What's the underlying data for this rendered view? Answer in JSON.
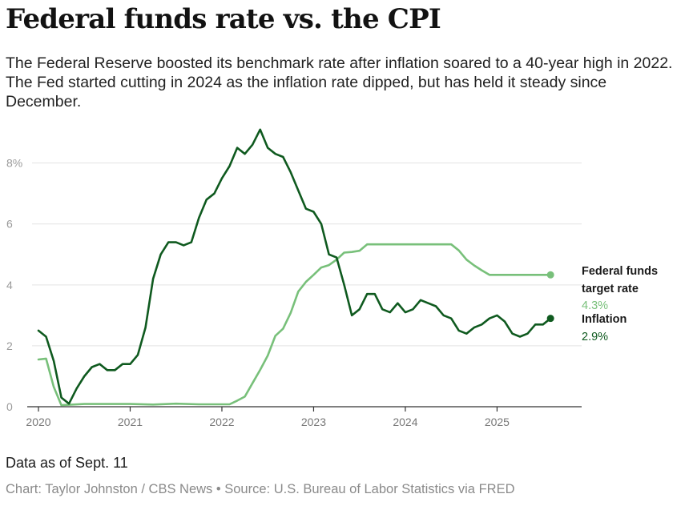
{
  "header": {
    "title": "Federal funds rate vs. the CPI",
    "subtitle": "The Federal Reserve boosted its benchmark rate after inflation soared to a 40-year high in 2022. The Fed started cutting in 2024 as the inflation rate dipped, but has held it steady since December."
  },
  "footer": {
    "note": "Data as of Sept. 11",
    "credit": "Chart: Taylor Johnston / CBS News • Source: U.S. Bureau of Labor Statistics via FRED"
  },
  "colors": {
    "fed_rate": "#78c07a",
    "inflation": "#0f5a1f"
  },
  "chart_data": {
    "type": "line",
    "ylim": [
      0,
      9.2
    ],
    "xlim": [
      2020.0,
      2025.8
    ],
    "grid": true,
    "y_ticks": [
      {
        "value": 0,
        "label": "0"
      },
      {
        "value": 2,
        "label": "2"
      },
      {
        "value": 4,
        "label": "4"
      },
      {
        "value": 6,
        "label": "6"
      },
      {
        "value": 8,
        "label": "8%"
      }
    ],
    "x_ticks": [
      {
        "value": 2020,
        "label": "2020"
      },
      {
        "value": 2021,
        "label": "2021"
      },
      {
        "value": 2022,
        "label": "2022"
      },
      {
        "value": 2023,
        "label": "2023"
      },
      {
        "value": 2024,
        "label": "2024"
      },
      {
        "value": 2025,
        "label": "2025"
      }
    ],
    "series": [
      {
        "key": "fed_rate",
        "name_lines": [
          "Federal funds",
          "target rate"
        ],
        "end_label": "4.3%",
        "x": [
          2020.0,
          2020.083,
          2020.167,
          2020.25,
          2020.5,
          2020.75,
          2021.0,
          2021.25,
          2021.5,
          2021.75,
          2022.0,
          2022.083,
          2022.167,
          2022.25,
          2022.333,
          2022.417,
          2022.5,
          2022.583,
          2022.667,
          2022.75,
          2022.833,
          2022.917,
          2023.0,
          2023.083,
          2023.167,
          2023.25,
          2023.333,
          2023.417,
          2023.5,
          2023.583,
          2023.667,
          2024.0,
          2024.5,
          2024.583,
          2024.667,
          2024.75,
          2024.833,
          2024.917,
          2025.0,
          2025.25,
          2025.5,
          2025.583
        ],
        "y": [
          1.55,
          1.58,
          0.65,
          0.05,
          0.09,
          0.09,
          0.09,
          0.07,
          0.1,
          0.08,
          0.08,
          0.08,
          0.2,
          0.33,
          0.77,
          1.21,
          1.68,
          2.33,
          2.56,
          3.08,
          3.78,
          4.1,
          4.33,
          4.57,
          4.65,
          4.83,
          5.06,
          5.08,
          5.12,
          5.33,
          5.33,
          5.33,
          5.33,
          5.13,
          4.83,
          4.64,
          4.48,
          4.33,
          4.33,
          4.33,
          4.33,
          4.33
        ]
      },
      {
        "key": "inflation",
        "name_lines": [
          "Inflation"
        ],
        "end_label": "2.9%",
        "x": [
          2020.0,
          2020.083,
          2020.167,
          2020.25,
          2020.333,
          2020.417,
          2020.5,
          2020.583,
          2020.667,
          2020.75,
          2020.833,
          2020.917,
          2021.0,
          2021.083,
          2021.167,
          2021.25,
          2021.333,
          2021.417,
          2021.5,
          2021.583,
          2021.667,
          2021.75,
          2021.833,
          2021.917,
          2022.0,
          2022.083,
          2022.167,
          2022.25,
          2022.333,
          2022.417,
          2022.5,
          2022.583,
          2022.667,
          2022.75,
          2022.833,
          2022.917,
          2023.0,
          2023.083,
          2023.167,
          2023.25,
          2023.333,
          2023.417,
          2023.5,
          2023.583,
          2023.667,
          2023.75,
          2023.833,
          2023.917,
          2024.0,
          2024.083,
          2024.167,
          2024.25,
          2024.333,
          2024.417,
          2024.5,
          2024.583,
          2024.667,
          2024.75,
          2024.833,
          2024.917,
          2025.0,
          2025.083,
          2025.167,
          2025.25,
          2025.333,
          2025.417,
          2025.5,
          2025.583
        ],
        "y": [
          2.5,
          2.3,
          1.5,
          0.3,
          0.1,
          0.6,
          1.0,
          1.3,
          1.4,
          1.2,
          1.2,
          1.4,
          1.4,
          1.7,
          2.6,
          4.2,
          5.0,
          5.4,
          5.4,
          5.3,
          5.4,
          6.2,
          6.8,
          7.0,
          7.5,
          7.9,
          8.5,
          8.3,
          8.6,
          9.1,
          8.5,
          8.3,
          8.2,
          7.7,
          7.1,
          6.5,
          6.4,
          6.0,
          5.0,
          4.9,
          4.0,
          3.0,
          3.2,
          3.7,
          3.7,
          3.2,
          3.1,
          3.4,
          3.1,
          3.2,
          3.5,
          3.4,
          3.3,
          3.0,
          2.9,
          2.5,
          2.4,
          2.6,
          2.7,
          2.9,
          3.0,
          2.8,
          2.4,
          2.3,
          2.4,
          2.7,
          2.7,
          2.9
        ]
      }
    ]
  }
}
